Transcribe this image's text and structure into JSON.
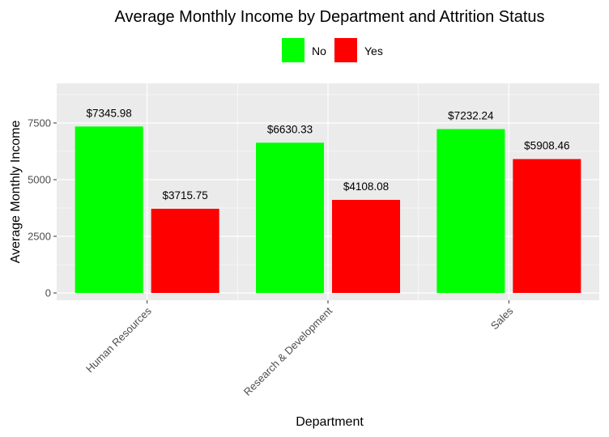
{
  "chart_data": {
    "type": "bar",
    "title": "Average Monthly Income by Department and Attrition Status",
    "xlabel": "Department",
    "ylabel": "Average Monthly Income",
    "categories": [
      "Human Resources",
      "Research & Development",
      "Sales"
    ],
    "series": [
      {
        "name": "No",
        "color": "#00ff00",
        "values": [
          7345.98,
          6630.33,
          7232.24
        ],
        "labels": [
          "$7345.98",
          "$6630.33",
          "$7232.24"
        ]
      },
      {
        "name": "Yes",
        "color": "#ff0000",
        "values": [
          3715.75,
          4108.08,
          5908.46
        ],
        "labels": [
          "$3715.75",
          "$4108.08",
          "$5908.46"
        ]
      }
    ],
    "ylim": [
      -250,
      9300
    ],
    "yticks": [
      0,
      2500,
      5000,
      7500
    ],
    "ytick_labels": [
      "0",
      "2500",
      "5000",
      "7500"
    ],
    "grid": true,
    "legend_position": "top-center"
  }
}
